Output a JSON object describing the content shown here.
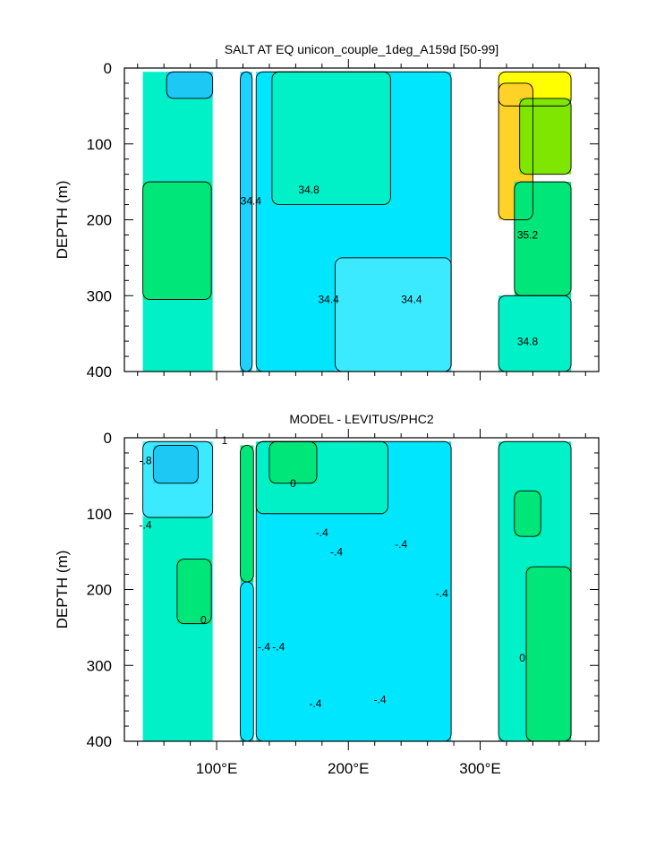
{
  "chart_data": [
    {
      "type": "heatmap",
      "title": "SALT AT EQ unicon_couple_1deg_A159d [50-99]",
      "xlabel": "",
      "ylabel": "DEPTH (m)",
      "xlim": [
        30,
        390
      ],
      "ylim": [
        400,
        0
      ],
      "x_ticks": [
        100,
        200,
        300
      ],
      "x_tick_labels": [
        "100°E",
        "200°E",
        "300°E"
      ],
      "y_ticks": [
        0,
        100,
        200,
        300,
        400
      ],
      "y_tick_labels": [
        "0",
        "100",
        "200",
        "300",
        "400"
      ],
      "contour_labels": [
        {
          "text": "34.4",
          "x": 126,
          "y": 180
        },
        {
          "text": "34.8",
          "x": 170,
          "y": 165
        },
        {
          "text": "34.4",
          "x": 185,
          "y": 310
        },
        {
          "text": "34.4",
          "x": 248,
          "y": 310
        },
        {
          "text": "35.2",
          "x": 336,
          "y": 225
        },
        {
          "text": "34.8",
          "x": 336,
          "y": 365
        }
      ],
      "regions": [
        {
          "color": "#00f0c8",
          "x": [
            44,
            97
          ],
          "y": [
            5,
            400
          ]
        },
        {
          "color": "#1ec8f5",
          "x": [
            62,
            97
          ],
          "y": [
            5,
            40
          ]
        },
        {
          "color": "#1ed2ff",
          "x": [
            118,
            127
          ],
          "y": [
            5,
            400
          ]
        },
        {
          "color": "#00e6ff",
          "x": [
            130,
            278
          ],
          "y": [
            5,
            400
          ]
        },
        {
          "color": "#00f0c8",
          "x": [
            142,
            232
          ],
          "y": [
            5,
            180
          ]
        },
        {
          "color": "#3ceaff",
          "x": [
            190,
            278
          ],
          "y": [
            250,
            400
          ]
        },
        {
          "color": "#00e678",
          "x": [
            44,
            96
          ],
          "y": [
            150,
            305
          ]
        },
        {
          "color": "#ffff00",
          "x": [
            314,
            369
          ],
          "y": [
            5,
            50
          ]
        },
        {
          "color": "#ffd228",
          "x": [
            314,
            340
          ],
          "y": [
            20,
            200
          ]
        },
        {
          "color": "#7ee600",
          "x": [
            330,
            369
          ],
          "y": [
            40,
            140
          ]
        },
        {
          "color": "#00e678",
          "x": [
            326,
            369
          ],
          "y": [
            150,
            300
          ]
        },
        {
          "color": "#00f0c8",
          "x": [
            314,
            369
          ],
          "y": [
            300,
            400
          ]
        }
      ]
    },
    {
      "type": "heatmap",
      "title": "MODEL - LEVITUS/PHC2",
      "xlabel": "",
      "ylabel": "DEPTH (m)",
      "xlim": [
        30,
        390
      ],
      "ylim": [
        400,
        0
      ],
      "x_ticks": [
        100,
        200,
        300
      ],
      "x_tick_labels": [
        "100°E",
        "200°E",
        "300°E"
      ],
      "y_ticks": [
        0,
        100,
        200,
        300,
        400
      ],
      "y_tick_labels": [
        "0",
        "100",
        "200",
        "300",
        "400"
      ],
      "contour_labels": [
        {
          "text": "-.8",
          "x": 46,
          "y": 35
        },
        {
          "text": "-.4",
          "x": 46,
          "y": 120
        },
        {
          "text": "0",
          "x": 90,
          "y": 245
        },
        {
          "text": "0",
          "x": 158,
          "y": 65
        },
        {
          "text": "-.4",
          "x": 180,
          "y": 130
        },
        {
          "text": "-.4",
          "x": 191,
          "y": 155
        },
        {
          "text": "-.4",
          "x": 240,
          "y": 145
        },
        {
          "text": "-.4",
          "x": 271,
          "y": 210
        },
        {
          "text": "-.4",
          "x": 136,
          "y": 280
        },
        {
          "text": "-.4",
          "x": 147,
          "y": 280
        },
        {
          "text": "-.4",
          "x": 175,
          "y": 355
        },
        {
          "text": "-.4",
          "x": 224,
          "y": 350
        },
        {
          "text": "0",
          "x": 332,
          "y": 295
        },
        {
          "text": "1",
          "x": 106,
          "y": 8
        }
      ],
      "regions": [
        {
          "color": "#00f0c8",
          "x": [
            44,
            97
          ],
          "y": [
            5,
            400
          ]
        },
        {
          "color": "#3ceaff",
          "x": [
            44,
            97
          ],
          "y": [
            5,
            105
          ]
        },
        {
          "color": "#1ec8f5",
          "x": [
            52,
            86
          ],
          "y": [
            10,
            60
          ]
        },
        {
          "color": "#00e678",
          "x": [
            70,
            96
          ],
          "y": [
            160,
            245
          ]
        },
        {
          "color": "#00e678",
          "x": [
            118,
            128
          ],
          "y": [
            10,
            190
          ]
        },
        {
          "color": "#00e6ff",
          "x": [
            118,
            128
          ],
          "y": [
            190,
            400
          ]
        },
        {
          "color": "#00e6ff",
          "x": [
            130,
            278
          ],
          "y": [
            5,
            400
          ]
        },
        {
          "color": "#00f0c8",
          "x": [
            130,
            230
          ],
          "y": [
            5,
            100
          ]
        },
        {
          "color": "#00e678",
          "x": [
            140,
            176
          ],
          "y": [
            5,
            60
          ]
        },
        {
          "color": "#00f0c8",
          "x": [
            314,
            369
          ],
          "y": [
            5,
            400
          ]
        },
        {
          "color": "#00e678",
          "x": [
            326,
            346
          ],
          "y": [
            70,
            130
          ]
        },
        {
          "color": "#00e678",
          "x": [
            335,
            369
          ],
          "y": [
            170,
            400
          ]
        }
      ]
    }
  ]
}
